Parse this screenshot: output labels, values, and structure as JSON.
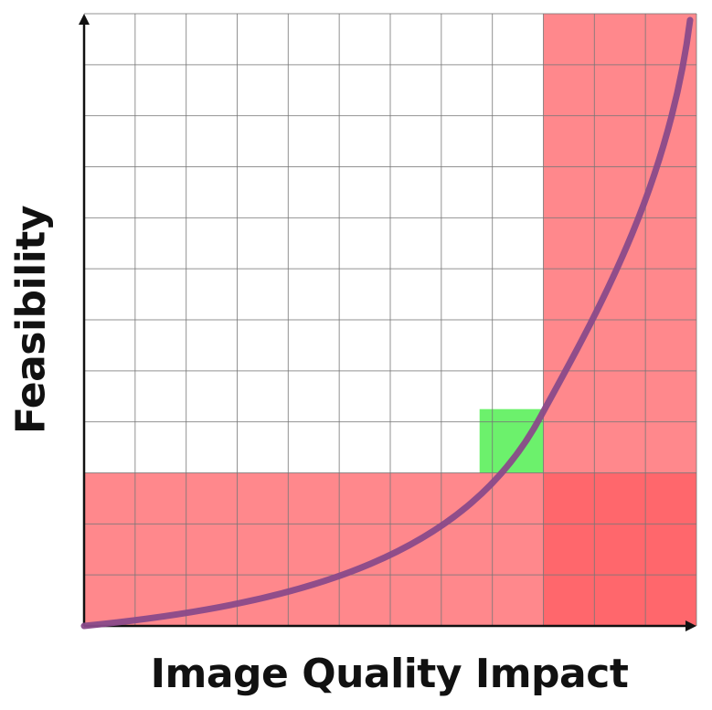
{
  "labels": {
    "x_axis": "Image Quality Impact",
    "y_axis": "Feasibility"
  },
  "grid": {
    "columns": 12,
    "rows": 12
  },
  "regions": [
    {
      "name": "high-impact-zone",
      "col_start": 9,
      "col_end": 12,
      "row_start": 0,
      "row_end": 12,
      "color": "#ff5a5f",
      "opacity": 0.72
    },
    {
      "name": "low-feasibility-zone",
      "col_start": 0,
      "col_end": 12,
      "row_start": 9,
      "row_end": 12,
      "color": "#ff5a5f",
      "opacity": 0.72
    },
    {
      "name": "sweet-spot",
      "col_start": 7.75,
      "col_end": 9,
      "row_start": 7.75,
      "row_end": 9,
      "color": "#5cf05c",
      "opacity": 0.9
    }
  ],
  "colors": {
    "grid_line": "#777777",
    "axis": "#111111",
    "curve": "#8a4a8a"
  }
}
